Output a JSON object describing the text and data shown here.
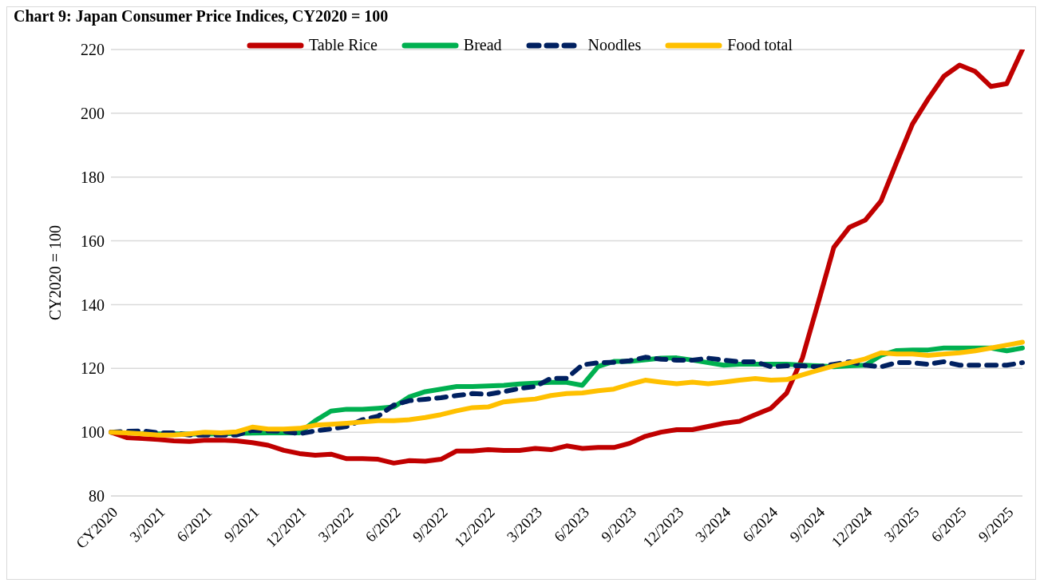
{
  "chart_data": {
    "type": "line",
    "title": "Chart 9: Japan Consumer Price Indices, CY2020 = 100",
    "ylabel": "CY2020 = 100",
    "categories": [
      "CY2020",
      null,
      null,
      "3/2021",
      null,
      null,
      "6/2021",
      null,
      null,
      "9/2021",
      null,
      null,
      "12/2021",
      null,
      null,
      "3/2022",
      null,
      null,
      "6/2022",
      null,
      null,
      "9/2022",
      null,
      null,
      "12/2022",
      null,
      null,
      "3/2023",
      null,
      null,
      "6/2023",
      null,
      null,
      "9/2023",
      null,
      null,
      "12/2023",
      null,
      null,
      "3/2024",
      null,
      null,
      "6/2024",
      null,
      null,
      "9/2024",
      null,
      null,
      "12/2024",
      null,
      null,
      "3/2025",
      null,
      null,
      "6/2025",
      null,
      null,
      "9/2025",
      null
    ],
    "series": [
      {
        "name": "Table Rice",
        "color": "#c00000",
        "line_style": "solid",
        "values": [
          100,
          98.3,
          98.0,
          97.7,
          97.3,
          97.1,
          97.5,
          97.5,
          97.3,
          96.7,
          95.9,
          94.3,
          93.3,
          92.8,
          93.1,
          91.7,
          91.7,
          91.5,
          90.3,
          91.1,
          90.9,
          91.5,
          94.1,
          94.1,
          94.5,
          94.3,
          94.3,
          94.9,
          94.5,
          95.7,
          94.9,
          95.2,
          95.2,
          96.5,
          98.7,
          100,
          100.8,
          100.8,
          101.8,
          102.8,
          103.4,
          105.5,
          107.5,
          112.3,
          123.3,
          140.5,
          158.0,
          164.3,
          166.5,
          172.5,
          184.7,
          196.6,
          204.5,
          211.6,
          215.1,
          213.1,
          208.4,
          209.3,
          220
        ]
      },
      {
        "name": "Bread",
        "color": "#00b050",
        "line_style": "solid",
        "values": [
          null,
          null,
          99.6,
          99.5,
          99.5,
          99.4,
          99.4,
          99.5,
          99.6,
          99.7,
          99.8,
          99.8,
          99.8,
          103.6,
          106.6,
          107.2,
          107.2,
          107.5,
          107.9,
          111.1,
          112.7,
          113.5,
          114.3,
          114.3,
          114.5,
          114.7,
          115.1,
          115.4,
          115.6,
          115.6,
          114.7,
          120.6,
          122.2,
          122.2,
          122.7,
          123.2,
          123.3,
          122.6,
          121.8,
          121.0,
          121.3,
          121.3,
          121.3,
          121.3,
          121.0,
          120.8,
          120.5,
          120.8,
          121.0,
          124.1,
          125.6,
          125.8,
          125.8,
          126.4,
          126.4,
          126.4,
          126.4,
          125.5,
          126.4
        ]
      },
      {
        "name": "Noodles",
        "color": "#002060",
        "line_style": "dashed",
        "values": [
          100,
          100.3,
          100.4,
          99.8,
          99.8,
          99.1,
          99.1,
          99.1,
          99.1,
          100.6,
          100.4,
          100.3,
          99.5,
          100.4,
          101.0,
          101.8,
          103.9,
          105.0,
          108.5,
          109.9,
          110.3,
          110.8,
          111.5,
          112.1,
          111.9,
          112.7,
          113.7,
          114.3,
          116.9,
          116.9,
          121.1,
          121.8,
          121.9,
          122.4,
          123.5,
          122.9,
          122.6,
          122.6,
          123.2,
          122.6,
          122.1,
          122.1,
          120.5,
          120.8,
          120.8,
          120.5,
          121.3,
          122.1,
          121.0,
          120.5,
          121.8,
          121.8,
          121.3,
          122.1,
          121.0,
          121.0,
          121.0,
          121.0,
          121.8
        ]
      },
      {
        "name": "Food total",
        "color": "#ffc000",
        "line_style": "solid",
        "values": [
          100,
          99.8,
          99.5,
          99.1,
          99.1,
          99.5,
          100,
          99.8,
          100.1,
          101.6,
          101.0,
          101.0,
          101.2,
          102.2,
          102.5,
          102.8,
          103.2,
          103.6,
          103.6,
          103.9,
          104.6,
          105.5,
          106.7,
          107.7,
          107.9,
          109.5,
          110.0,
          110.4,
          111.5,
          112.1,
          112.3,
          113.0,
          113.5,
          115.0,
          116.3,
          115.7,
          115.2,
          115.7,
          115.2,
          115.7,
          116.3,
          116.8,
          116.3,
          116.5,
          118.0,
          119.4,
          120.8,
          121.8,
          123.0,
          124.9,
          124.5,
          124.5,
          124.1,
          124.5,
          124.9,
          125.5,
          126.4,
          127.3,
          128.2
        ]
      }
    ],
    "ylim": [
      80,
      220
    ],
    "yticks": [
      80,
      100,
      120,
      140,
      160,
      180,
      200,
      220
    ],
    "grid": "y",
    "legend": "top",
    "marker": "none"
  }
}
